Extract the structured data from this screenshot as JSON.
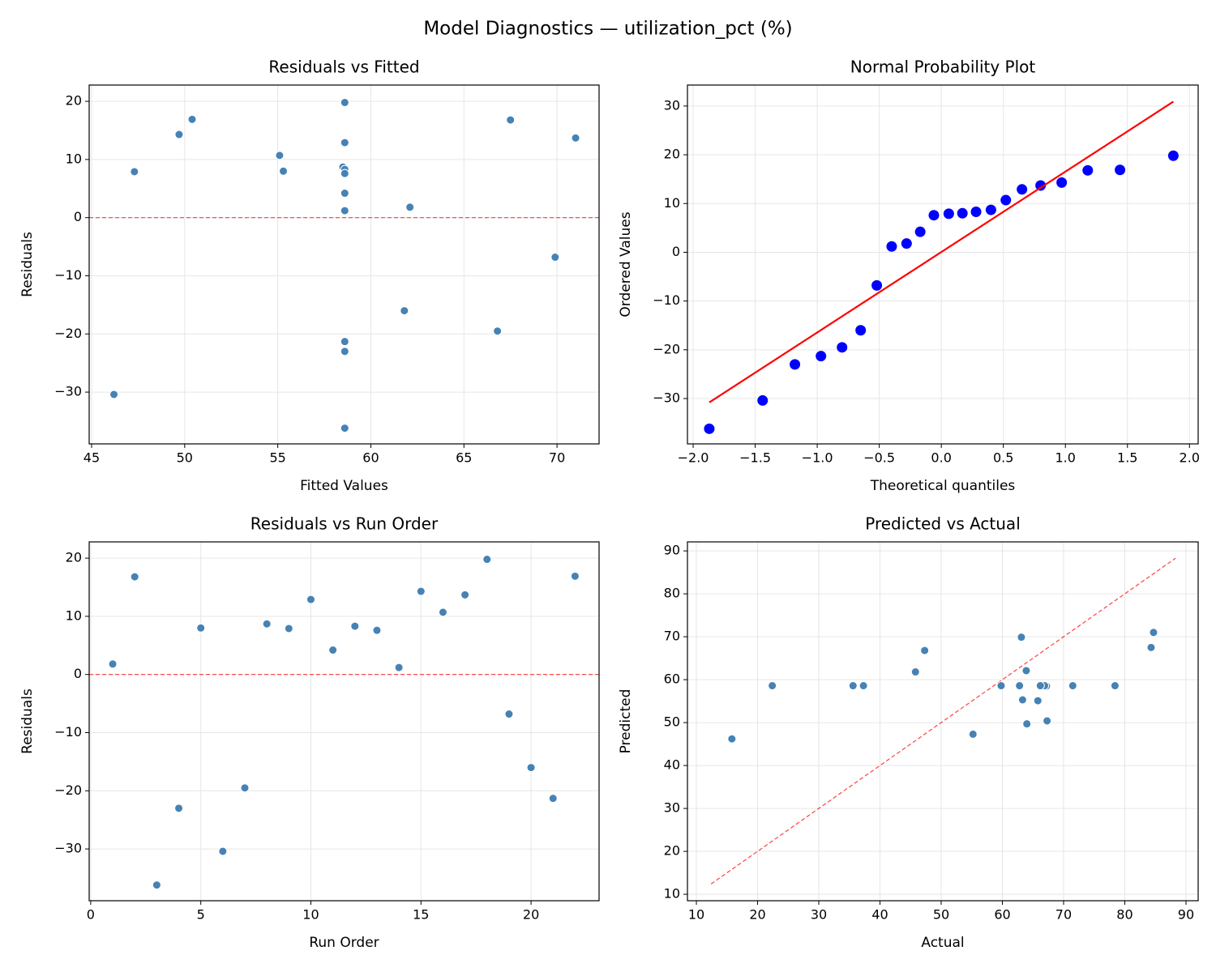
{
  "title": "Model Diagnostics — utilization_pct (%)",
  "chart_data": [
    {
      "type": "scatter",
      "title": "Residuals vs Fitted",
      "x_label": "Fitted Values",
      "y_label": "Residuals",
      "x": [
        62.1,
        67.5,
        58.6,
        58.6,
        55.3,
        46.2,
        66.8,
        58.5,
        47.3,
        58.6,
        58.6,
        58.6,
        58.6,
        58.6,
        49.7,
        55.1,
        71.0,
        58.6,
        69.9,
        61.8,
        58.6,
        50.4
      ],
      "y": [
        1.8,
        16.8,
        -36.2,
        -23.0,
        8.0,
        -30.4,
        -19.5,
        8.7,
        7.9,
        12.9,
        4.2,
        8.3,
        7.6,
        1.2,
        14.3,
        10.7,
        13.7,
        19.8,
        -6.8,
        -16.0,
        -21.3,
        16.9
      ],
      "color": "#4682b4",
      "xlim": [
        44.87,
        72.26
      ],
      "ylim": [
        -38.9,
        22.8
      ],
      "xticks": [
        45,
        50,
        55,
        60,
        65,
        70
      ],
      "yticks": [
        {
          "value": -30,
          "label": "−30"
        },
        {
          "value": -20,
          "label": "−20"
        },
        {
          "value": -10,
          "label": "−10"
        },
        0,
        10,
        20
      ],
      "grid": true,
      "hline": {
        "y": 0,
        "color": "#ff0000"
      }
    },
    {
      "type": "probplot",
      "title": "Normal Probability Plot",
      "x_label": "Theoretical quantiles",
      "y_label": "Ordered Values",
      "x": [
        -1.87,
        -1.44,
        -1.18,
        -0.97,
        -0.8,
        -0.65,
        -0.52,
        -0.4,
        -0.28,
        -0.17,
        -0.06,
        0.06,
        0.17,
        0.28,
        0.4,
        0.52,
        0.65,
        0.8,
        0.97,
        1.18,
        1.44,
        1.87
      ],
      "y": [
        -36.2,
        -30.4,
        -23.0,
        -21.3,
        -19.5,
        -16.0,
        -6.8,
        1.2,
        1.8,
        4.2,
        7.6,
        7.9,
        8.0,
        8.3,
        8.7,
        10.7,
        12.9,
        13.7,
        14.3,
        16.8,
        16.9,
        19.8
      ],
      "color": "#0000ff",
      "fit_line": {
        "x": [
          -1.87,
          1.87
        ],
        "y": [
          -30.8,
          30.9
        ],
        "color": "#ff0000"
      },
      "xlim": [
        -2.046,
        2.07
      ],
      "ylim": [
        -39.3,
        34.3
      ],
      "xticks": [
        {
          "value": -2,
          "label": "−2.0"
        },
        {
          "value": -1.5,
          "label": "−1.5"
        },
        {
          "value": -1,
          "label": "−1.0"
        },
        {
          "value": -0.5,
          "label": "−0.5"
        },
        {
          "value": 0,
          "label": "0.0"
        },
        {
          "value": 0.5,
          "label": "0.5"
        },
        {
          "value": 1,
          "label": "1.0"
        },
        {
          "value": 1.5,
          "label": "1.5"
        },
        {
          "value": 2,
          "label": "2.0"
        }
      ],
      "yticks": [
        {
          "value": -30,
          "label": "−30"
        },
        {
          "value": -20,
          "label": "−20"
        },
        {
          "value": -10,
          "label": "−10"
        },
        0,
        10,
        20,
        30
      ],
      "grid": true
    },
    {
      "type": "scatter",
      "title": "Residuals vs Run Order",
      "x_label": "Run Order",
      "y_label": "Residuals",
      "x": [
        1,
        2,
        3,
        4,
        5,
        6,
        7,
        8,
        9,
        10,
        11,
        12,
        13,
        14,
        15,
        16,
        17,
        18,
        19,
        20,
        21,
        22
      ],
      "y": [
        1.8,
        16.8,
        -36.2,
        -23.0,
        8.0,
        -30.4,
        -19.5,
        8.7,
        7.9,
        12.9,
        4.2,
        8.3,
        7.6,
        1.2,
        14.3,
        10.7,
        13.7,
        19.8,
        -6.8,
        -16.0,
        -21.3,
        16.9
      ],
      "color": "#4682b4",
      "xlim": [
        -0.07,
        23.09
      ],
      "ylim": [
        -38.9,
        22.8
      ],
      "xticks": [
        0,
        5,
        10,
        15,
        20
      ],
      "yticks": [
        {
          "value": -30,
          "label": "−30"
        },
        {
          "value": -20,
          "label": "−20"
        },
        {
          "value": -10,
          "label": "−10"
        },
        0,
        10,
        20
      ],
      "grid": true,
      "hline": {
        "y": 0,
        "color": "#ff0000"
      }
    },
    {
      "type": "scatter",
      "title": "Predicted vs Actual",
      "x_label": "Actual",
      "y_label": "Predicted",
      "x": [
        63.9,
        84.3,
        22.4,
        35.6,
        63.3,
        15.8,
        47.3,
        67.2,
        55.2,
        71.5,
        62.8,
        66.9,
        66.2,
        59.8,
        64.0,
        65.8,
        84.7,
        78.4,
        63.1,
        45.8,
        37.3,
        67.3
      ],
      "y": [
        62.1,
        67.5,
        58.6,
        58.6,
        55.3,
        46.2,
        66.8,
        58.5,
        47.3,
        58.6,
        58.6,
        58.6,
        58.6,
        58.6,
        49.7,
        55.1,
        71.0,
        58.6,
        69.9,
        61.8,
        58.6,
        50.4
      ],
      "color": "#4682b4",
      "xlim": [
        8.54,
        91.99
      ],
      "ylim": [
        8.5,
        92.1
      ],
      "xticks": [
        10,
        20,
        30,
        40,
        50,
        60,
        70,
        80,
        90
      ],
      "yticks": [
        10,
        20,
        30,
        40,
        50,
        60,
        70,
        80,
        90
      ],
      "grid": true,
      "ref_line": {
        "x": [
          12.4,
          88.3
        ],
        "y": [
          12.4,
          88.3
        ],
        "color": "#ff0000"
      }
    }
  ]
}
